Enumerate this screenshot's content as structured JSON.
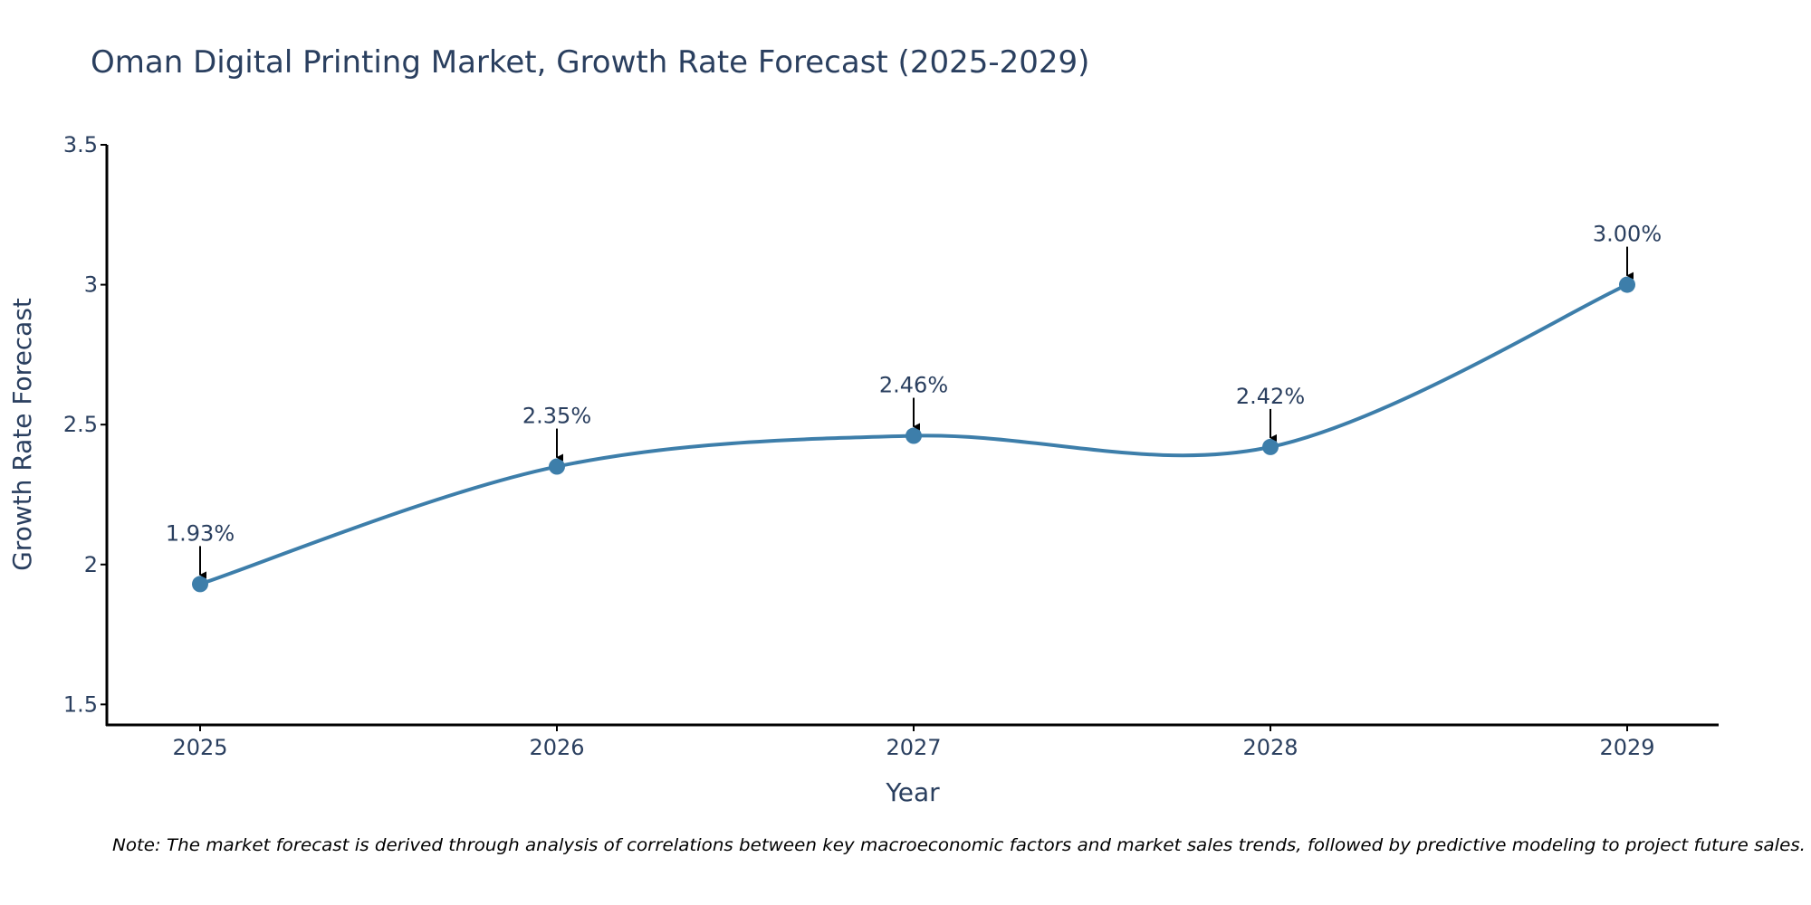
{
  "chart_data": {
    "type": "line",
    "title": "Oman Digital Printing Market, Growth Rate Forecast (2025-2029)",
    "xlabel": "Year",
    "ylabel": "Growth Rate Forecast",
    "categories": [
      "2025",
      "2026",
      "2027",
      "2028",
      "2029"
    ],
    "series": [
      {
        "name": "Growth Rate Forecast",
        "values": [
          1.93,
          2.35,
          2.46,
          2.42,
          3.0
        ],
        "labels": [
          "1.93%",
          "2.35%",
          "2.46%",
          "2.42%",
          "3.00%"
        ],
        "color": "#3d7eaa"
      }
    ],
    "ylim": [
      1.43,
      3.5
    ],
    "yticks": [
      1.5,
      2,
      2.5,
      3,
      3.5
    ],
    "ytick_labels": [
      "1.5",
      "2",
      "2.5",
      "3",
      "3.5"
    ],
    "grid": false,
    "line_shape": "spline",
    "note": "Note: The market forecast is derived through analysis of correlations between key macroeconomic factors and market sales trends, followed by predictive modeling to project future sales."
  }
}
